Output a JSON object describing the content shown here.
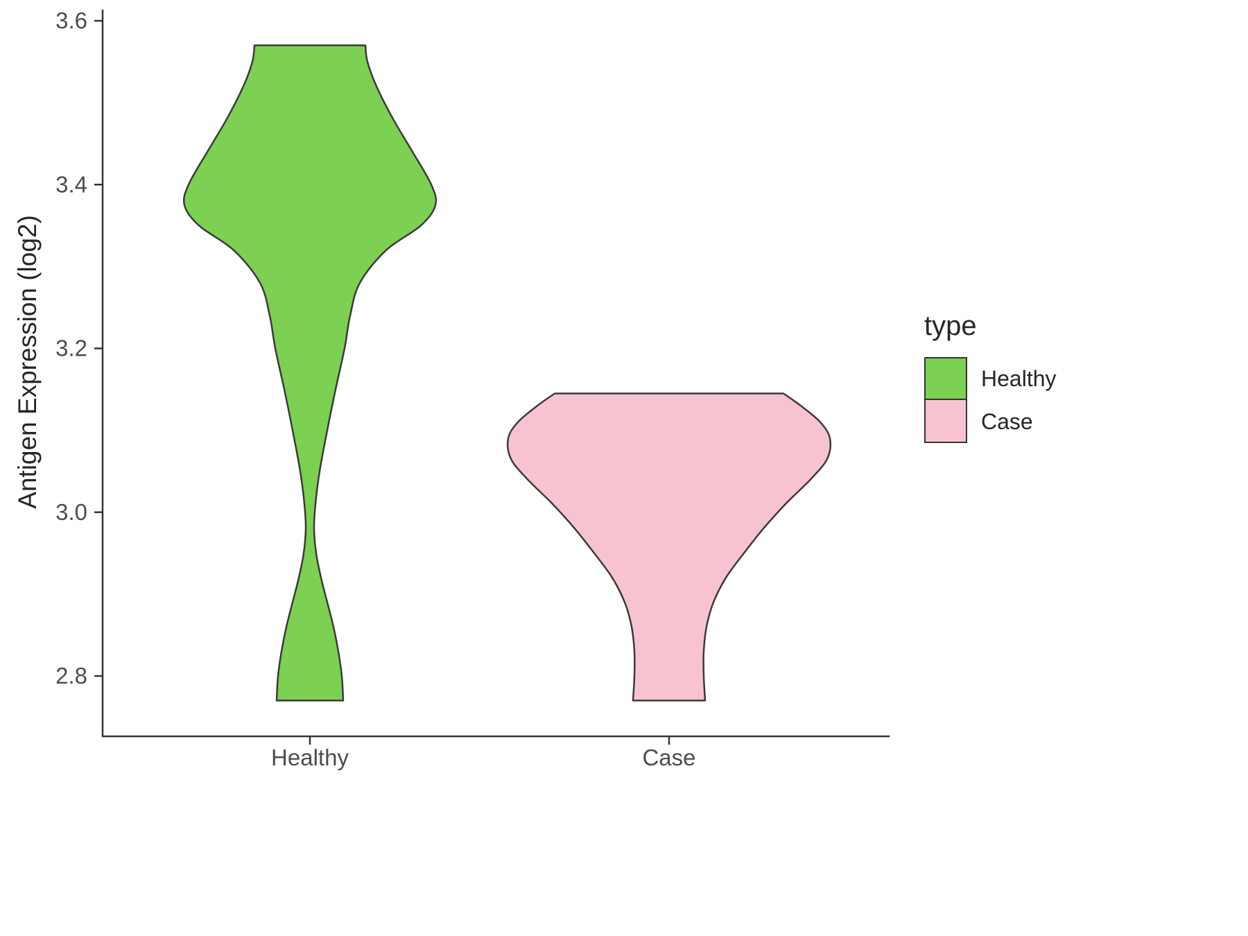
{
  "chart_data": {
    "type": "violin",
    "title": "",
    "xlabel": "",
    "ylabel": "Antigen Expression (log2)",
    "categories": [
      "Healthy",
      "Case"
    ],
    "ylim": [
      2.72,
      3.64
    ],
    "y_ticks": [
      {
        "v": 2.8,
        "label": "2.8"
      },
      {
        "v": 3.0,
        "label": "3.0"
      },
      {
        "v": 3.2,
        "label": "3.2"
      },
      {
        "v": 3.4,
        "label": "3.4"
      },
      {
        "v": 3.6,
        "label": "3.6"
      }
    ],
    "colors": {
      "healthy_fill": "#7CD052",
      "case_fill": "#F8C3D0",
      "outline": "#3A3A3A",
      "axis": "#333333",
      "tick_label": "#4D4D4D",
      "text": "#262626"
    },
    "legend": {
      "title": "type",
      "entries": [
        {
          "label": "Healthy",
          "color": "#7CD052"
        },
        {
          "label": "Case",
          "color": "#F8C3D0"
        }
      ]
    },
    "series": [
      {
        "name": "Healthy",
        "color": "#7CD052",
        "value_range": [
          2.77,
          3.57
        ],
        "profile": [
          [
            2.77,
            48
          ],
          [
            2.8,
            46
          ],
          [
            2.83,
            41
          ],
          [
            2.86,
            34
          ],
          [
            2.89,
            25
          ],
          [
            2.92,
            16
          ],
          [
            2.95,
            9
          ],
          [
            2.98,
            6
          ],
          [
            3.01,
            8
          ],
          [
            3.05,
            14
          ],
          [
            3.1,
            25
          ],
          [
            3.15,
            37
          ],
          [
            3.2,
            50
          ],
          [
            3.24,
            58
          ],
          [
            3.28,
            72
          ],
          [
            3.32,
            110
          ],
          [
            3.35,
            160
          ],
          [
            3.375,
            181
          ],
          [
            3.4,
            175
          ],
          [
            3.44,
            148
          ],
          [
            3.48,
            120
          ],
          [
            3.52,
            96
          ],
          [
            3.55,
            83
          ],
          [
            3.57,
            80
          ]
        ]
      },
      {
        "name": "Case",
        "color": "#F8C3D0",
        "value_range": [
          2.77,
          3.145
        ],
        "profile": [
          [
            2.77,
            52
          ],
          [
            2.8,
            50
          ],
          [
            2.83,
            50
          ],
          [
            2.86,
            54
          ],
          [
            2.89,
            64
          ],
          [
            2.92,
            82
          ],
          [
            2.95,
            108
          ],
          [
            2.98,
            136
          ],
          [
            3.01,
            168
          ],
          [
            3.04,
            204
          ],
          [
            3.065,
            228
          ],
          [
            3.09,
            232
          ],
          [
            3.11,
            218
          ],
          [
            3.13,
            190
          ],
          [
            3.145,
            165
          ]
        ]
      }
    ]
  }
}
